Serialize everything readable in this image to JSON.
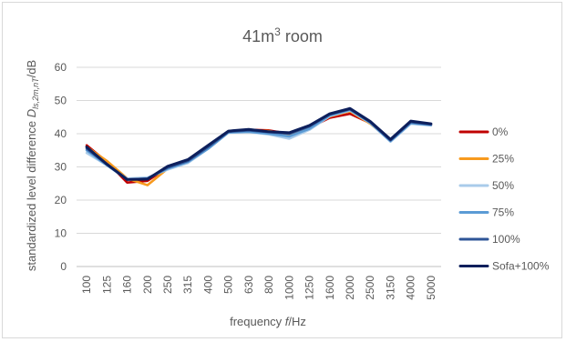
{
  "chart_data": {
    "type": "line",
    "title": "41m³ room",
    "title_base": "41m",
    "title_sup": "3",
    "title_suffix": " room",
    "xlabel": "frequency f/Hz",
    "xlabel_parts": {
      "before": "frequency ",
      "italic": "f",
      "after": "/Hz"
    },
    "ylabel": "standardized level difference Dls,2m,nT/dB",
    "ylabel_parts": {
      "before": "standardized level difference ",
      "italic": "D",
      "sub": "ls,2m,nT",
      "after": "/dB"
    },
    "categories": [
      "100",
      "125",
      "160",
      "200",
      "250",
      "315",
      "400",
      "500",
      "630",
      "800",
      "1000",
      "1250",
      "1600",
      "2000",
      "2500",
      "3150",
      "4000",
      "5000"
    ],
    "ylim": [
      0,
      60
    ],
    "yticks": [
      0,
      10,
      20,
      30,
      40,
      50,
      60
    ],
    "grid": true,
    "legend": "right",
    "series": [
      {
        "name": "0%",
        "color": "#c00000",
        "values": [
          36.5,
          31.5,
          25.3,
          25.8,
          29.8,
          31.8,
          36.2,
          40.5,
          41.2,
          41.0,
          40.0,
          41.8,
          44.8,
          46.0,
          43.2,
          37.8,
          43.5,
          42.6
        ]
      },
      {
        "name": "25%",
        "color": "#f79a1e",
        "values": [
          36.0,
          31.8,
          26.5,
          24.5,
          29.5,
          31.5,
          36.0,
          40.4,
          41.0,
          40.8,
          39.8,
          41.5,
          45.2,
          46.8,
          43.0,
          38.0,
          43.8,
          42.8
        ]
      },
      {
        "name": "50%",
        "color": "#a9cbea",
        "values": [
          34.2,
          30.5,
          26.5,
          26.8,
          29.2,
          31.2,
          35.5,
          40.3,
          40.5,
          39.8,
          38.5,
          41.2,
          45.3,
          47.0,
          43.2,
          37.6,
          43.0,
          42.5
        ]
      },
      {
        "name": "75%",
        "color": "#5b9bd5",
        "values": [
          35.0,
          30.5,
          26.2,
          26.5,
          29.5,
          31.5,
          35.5,
          40.4,
          40.6,
          40.0,
          39.2,
          41.5,
          45.5,
          47.2,
          43.3,
          37.8,
          43.2,
          42.6
        ]
      },
      {
        "name": "100%",
        "color": "#2e5597",
        "values": [
          35.5,
          30.8,
          26.2,
          26.5,
          29.8,
          31.8,
          36.0,
          40.6,
          41.0,
          40.5,
          40.0,
          42.2,
          45.8,
          47.4,
          43.5,
          38.0,
          43.5,
          42.8
        ]
      },
      {
        "name": "Sofa+100%",
        "color": "#0d1f5c",
        "values": [
          36.0,
          30.8,
          26.2,
          26.3,
          30.2,
          32.2,
          36.5,
          40.8,
          41.3,
          40.6,
          40.3,
          42.5,
          46.0,
          47.6,
          43.7,
          38.3,
          43.8,
          43.0
        ]
      }
    ]
  }
}
